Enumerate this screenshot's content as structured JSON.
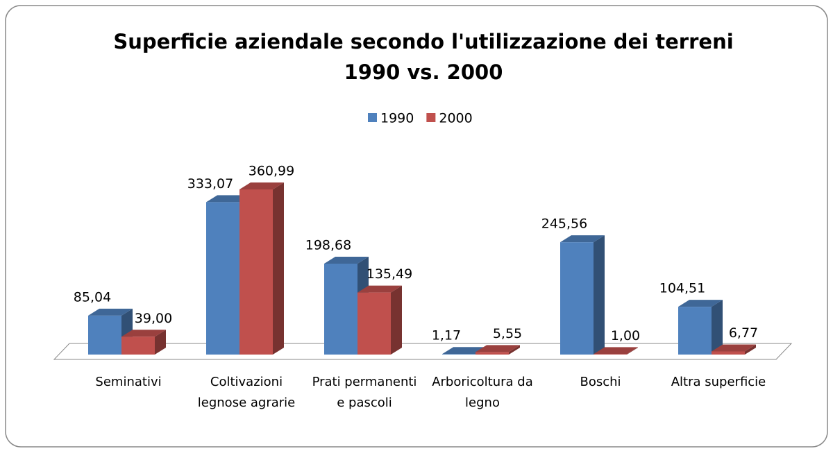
{
  "chart_data": {
    "type": "bar3d",
    "title": [
      "Superficie aziendale secondo l'utilizzazione dei terreni",
      "1990 vs. 2000"
    ],
    "categories": [
      "Seminativi",
      "Coltivazioni legnose agrarie",
      "Prati permanenti e pascoli",
      "Arboricoltura da legno",
      "Boschi",
      "Altra superficie"
    ],
    "series": [
      {
        "name": "1990",
        "color": "#4f81bd",
        "values": [
          85.04,
          333.07,
          198.68,
          1.17,
          245.56,
          104.51
        ],
        "value_labels": [
          "85,04",
          "333,07",
          "198,68",
          "1,17",
          "245,56",
          "104,51"
        ]
      },
      {
        "name": "2000",
        "color": "#c0504d",
        "values": [
          39.0,
          360.99,
          135.49,
          5.55,
          1.0,
          6.77
        ],
        "value_labels": [
          "39,00",
          "360,99",
          "135,49",
          "5,55",
          "1,00",
          "6,77"
        ]
      }
    ],
    "legend": "top"
  }
}
